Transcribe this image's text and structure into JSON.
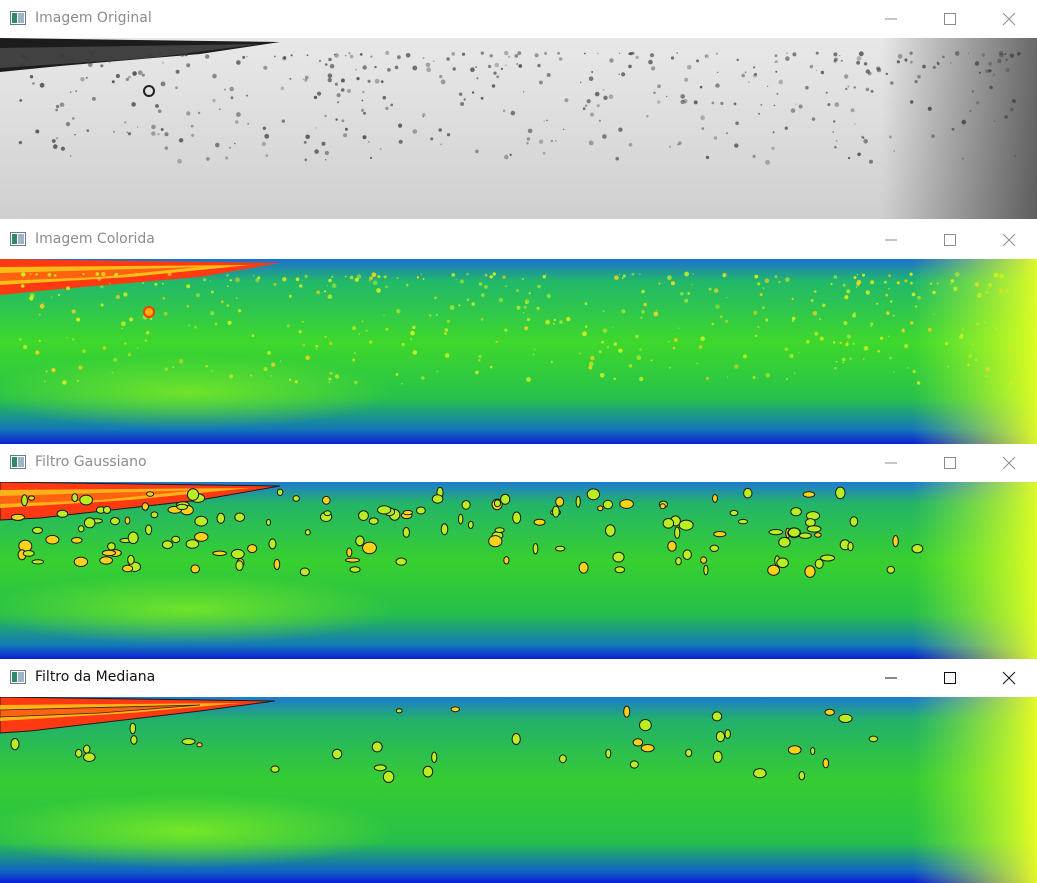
{
  "windows": [
    {
      "title": "Imagem Original",
      "state": "inactive",
      "view": "original"
    },
    {
      "title": "Imagem Colorida",
      "state": "inactive",
      "view": "colormap"
    },
    {
      "title": "Filtro Gaussiano",
      "state": "inactive",
      "view": "gaussian"
    },
    {
      "title": "Filtro da Mediana",
      "state": "active",
      "view": "median"
    }
  ],
  "icons": {
    "app": "app-window-icon",
    "minimize": "minimize-icon",
    "maximize": "maximize-icon",
    "close": "close-icon"
  },
  "colors": {
    "titlebar_bg": "#ffffff",
    "inactive_title": "#8c8c8c",
    "active_title": "#111111",
    "jet_low": "#0a1fd6",
    "jet_mid": "#1fc83a",
    "jet_high": "#ff3a12",
    "contour": "#1a1a1a"
  }
}
